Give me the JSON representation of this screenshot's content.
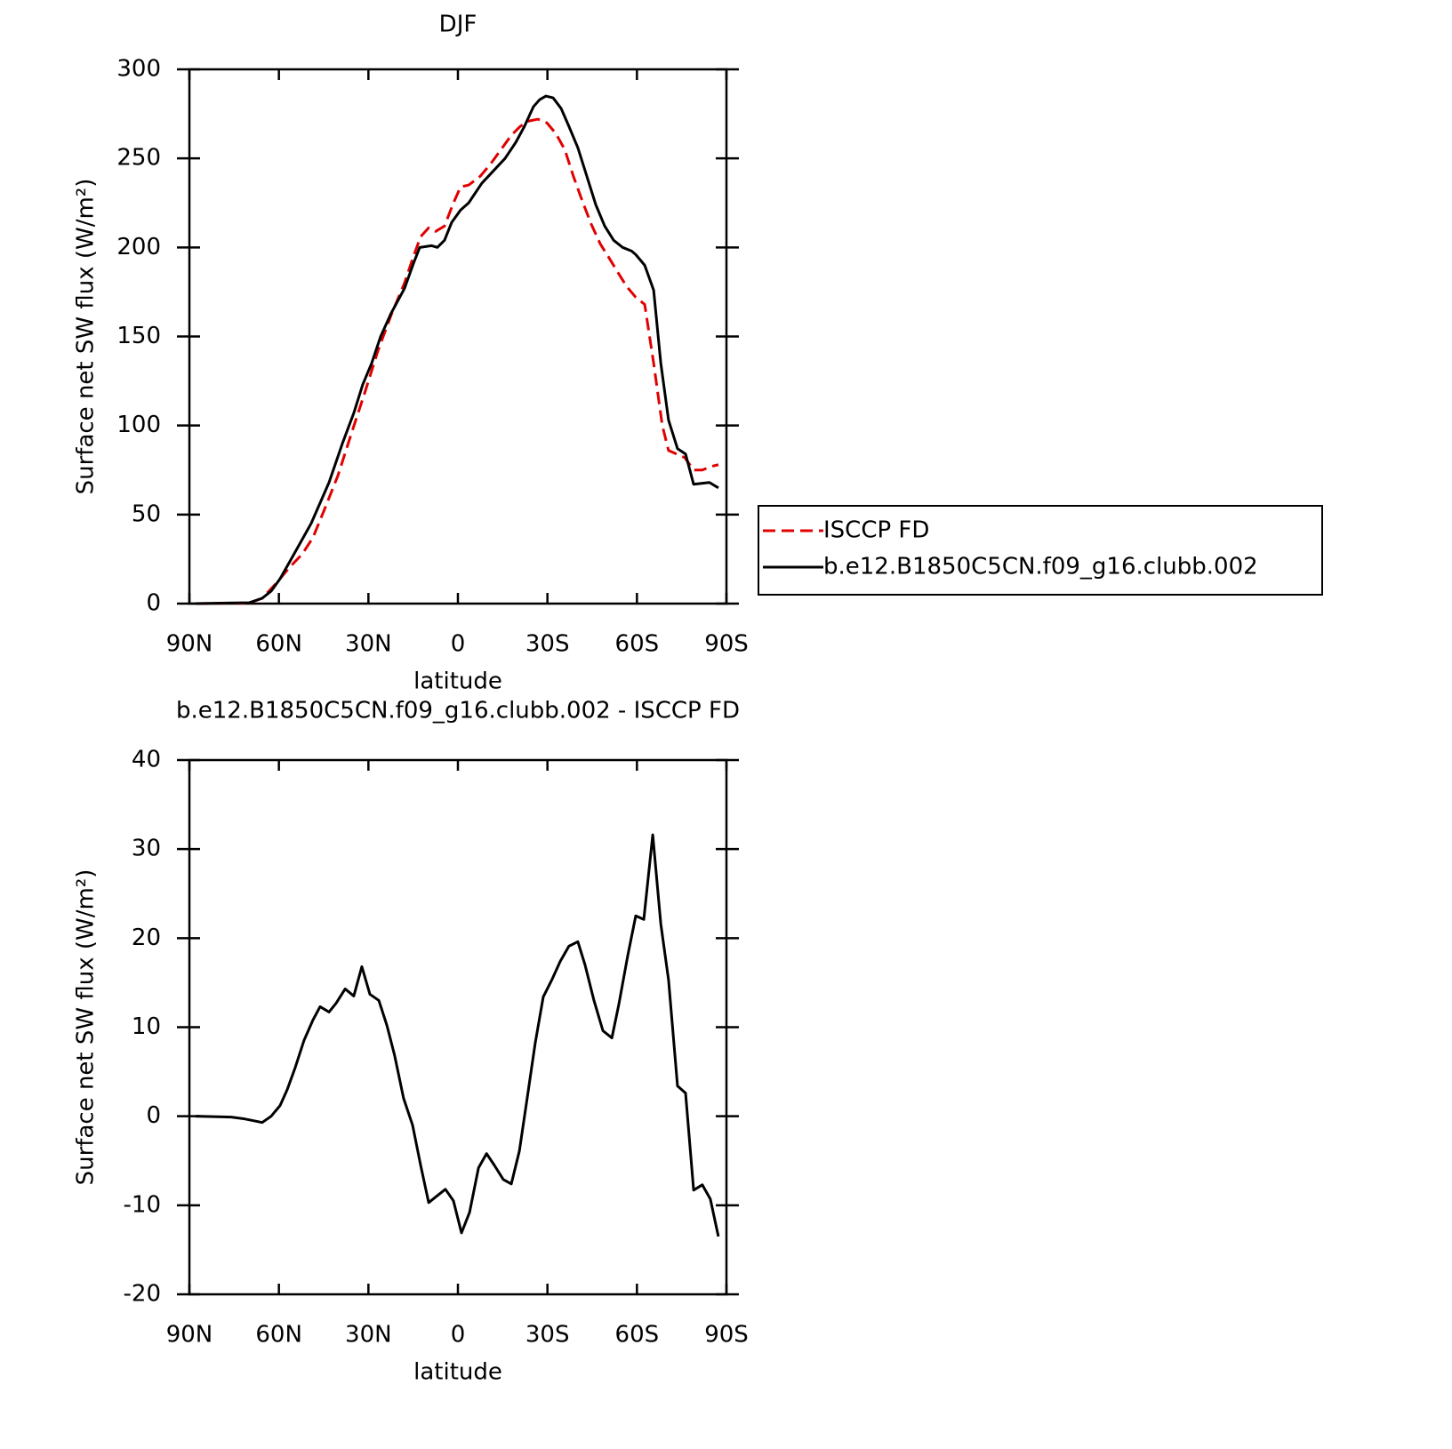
{
  "chart_data": [
    {
      "type": "line",
      "title": "DJF",
      "xlabel": "latitude",
      "ylabel": "Surface net SW flux (W/m²)",
      "xlim": [
        90,
        -90
      ],
      "xticks": [
        {
          "value": 90,
          "label": "90N"
        },
        {
          "value": 60,
          "label": "60N"
        },
        {
          "value": 30,
          "label": "30N"
        },
        0,
        {
          "value": -30,
          "label": "30S"
        },
        {
          "value": -60,
          "label": "60S"
        },
        {
          "value": -90,
          "label": "90S"
        }
      ],
      "ylim": [
        0,
        300
      ],
      "yticks": [
        0,
        50,
        100,
        150,
        200,
        250,
        300
      ],
      "legend": "right",
      "series": [
        {
          "name": "ISCCP FD",
          "color": "#e00000",
          "dash": true,
          "x": [
            87.9,
            70.0,
            65.6,
            61.1,
            56.6,
            52.1,
            48.6,
            44.7,
            40.2,
            35.8,
            31.3,
            26.8,
            22.4,
            17.9,
            14.9,
            12.5,
            9.8,
            7.5,
            4.5,
            1.5,
            -0.9,
            -3.6,
            -7.5,
            -11.0,
            -14.9,
            -17.9,
            -20.9,
            -23.8,
            -26.8,
            -29.8,
            -32.8,
            -35.8,
            -38.7,
            -41.7,
            -44.7,
            -47.7,
            -50.7,
            -53.6,
            -56.6,
            -59.6,
            -62.6,
            -65.6,
            -68.5,
            -70.6,
            -76.0,
            -79.0,
            -81.9,
            -84.9,
            -87.3
          ],
          "values": [
            0,
            0.3,
            3,
            11,
            20,
            28,
            37,
            53,
            72,
            95,
            118,
            142,
            162,
            180,
            195,
            206,
            211,
            209,
            212,
            225,
            234,
            235,
            240,
            247,
            256,
            263,
            268,
            271,
            272,
            270,
            264,
            255,
            240,
            226,
            213,
            202,
            194,
            186,
            178,
            172,
            168,
            135,
            100,
            86,
            82,
            75,
            75,
            77,
            78
          ]
        },
        {
          "name": "b.e12.B1850C5CN.f09_g16.clubb.002",
          "color": "#000000",
          "dash": false,
          "x": [
            87.9,
            70.0,
            65.6,
            62.6,
            59.6,
            55.2,
            49.2,
            43.2,
            38.7,
            34.9,
            31.9,
            28.9,
            25.9,
            22.4,
            17.9,
            14.9,
            12.8,
            8.9,
            6.9,
            4.5,
            2.1,
            -0.9,
            -3.6,
            -8.0,
            -11.9,
            -15.8,
            -19.4,
            -22.3,
            -25.3,
            -27.4,
            -29.5,
            -31.9,
            -34.6,
            -37.2,
            -40.2,
            -43.2,
            -46.2,
            -49.2,
            -52.2,
            -55.2,
            -58.2,
            -59.6,
            -62.6,
            -65.6,
            -68.0,
            -70.6,
            -73.6,
            -76.3,
            -79.0,
            -84.3,
            -87.3
          ],
          "values": [
            0,
            0.5,
            3,
            7,
            14,
            27,
            45,
            68,
            90,
            107,
            123,
            135,
            150,
            163,
            177,
            191,
            200,
            201,
            200,
            204,
            214,
            221,
            225,
            236,
            243,
            250,
            259,
            268,
            279,
            283,
            285,
            284,
            278,
            268,
            256,
            240,
            224,
            212,
            204,
            200,
            198,
            196,
            190,
            176,
            135,
            103,
            87,
            84,
            67,
            68,
            65
          ]
        }
      ]
    },
    {
      "type": "line",
      "title": "b.e12.B1850C5CN.f09_g16.clubb.002 - ISCCP FD",
      "xlabel": "latitude",
      "ylabel": "Surface net SW flux (W/m²)",
      "xlim": [
        90,
        -90
      ],
      "xticks": [
        {
          "value": 90,
          "label": "90N"
        },
        {
          "value": 60,
          "label": "60N"
        },
        {
          "value": 30,
          "label": "30N"
        },
        0,
        {
          "value": -30,
          "label": "30S"
        },
        {
          "value": -60,
          "label": "60S"
        },
        {
          "value": -90,
          "label": "90S"
        }
      ],
      "ylim": [
        -20,
        40
      ],
      "yticks": [
        -20,
        -10,
        0,
        10,
        20,
        30,
        40
      ],
      "series": [
        {
          "color": "#000000",
          "dash": false,
          "x": [
            87.9,
            76.0,
            71.5,
            68.5,
            65.6,
            62.6,
            59.6,
            57.2,
            54.5,
            51.6,
            48.6,
            46.2,
            43.2,
            40.8,
            37.8,
            34.9,
            32.2,
            29.5,
            26.5,
            23.8,
            21.2,
            18.2,
            15.2,
            12.5,
            9.8,
            7.2,
            4.2,
            1.5,
            -1.2,
            -3.9,
            -6.9,
            -9.6,
            -12.2,
            -15.2,
            -17.9,
            -20.6,
            -23.2,
            -25.9,
            -28.6,
            -31.6,
            -34.3,
            -37.2,
            -40.2,
            -42.6,
            -45.6,
            -48.6,
            -51.6,
            -53.9,
            -56.9,
            -59.6,
            -62.3,
            -65.3,
            -68.0,
            -70.6,
            -73.6,
            -76.3,
            -79.0,
            -81.9,
            -84.6,
            -87.3
          ],
          "values": [
            0,
            -0.1,
            -0.3,
            -0.5,
            -0.7,
            0,
            1.2,
            3,
            5.5,
            8.5,
            10.8,
            12.3,
            11.7,
            12.7,
            14.3,
            13.5,
            16.8,
            13.7,
            13,
            10.2,
            6.8,
            2,
            -1,
            -5.5,
            -9.7,
            -9,
            -8.2,
            -9.5,
            -13.1,
            -10.8,
            -5.8,
            -4.2,
            -5.5,
            -7.1,
            -7.6,
            -3.9,
            2,
            8.2,
            13.4,
            15.4,
            17.4,
            19.1,
            19.6,
            17,
            13,
            9.6,
            8.8,
            12.5,
            18,
            22.5,
            22.1,
            31.6,
            21.6,
            15.3,
            3.4,
            2.6,
            -8.3,
            -7.7,
            -9.3,
            -13.5
          ]
        }
      ]
    }
  ]
}
